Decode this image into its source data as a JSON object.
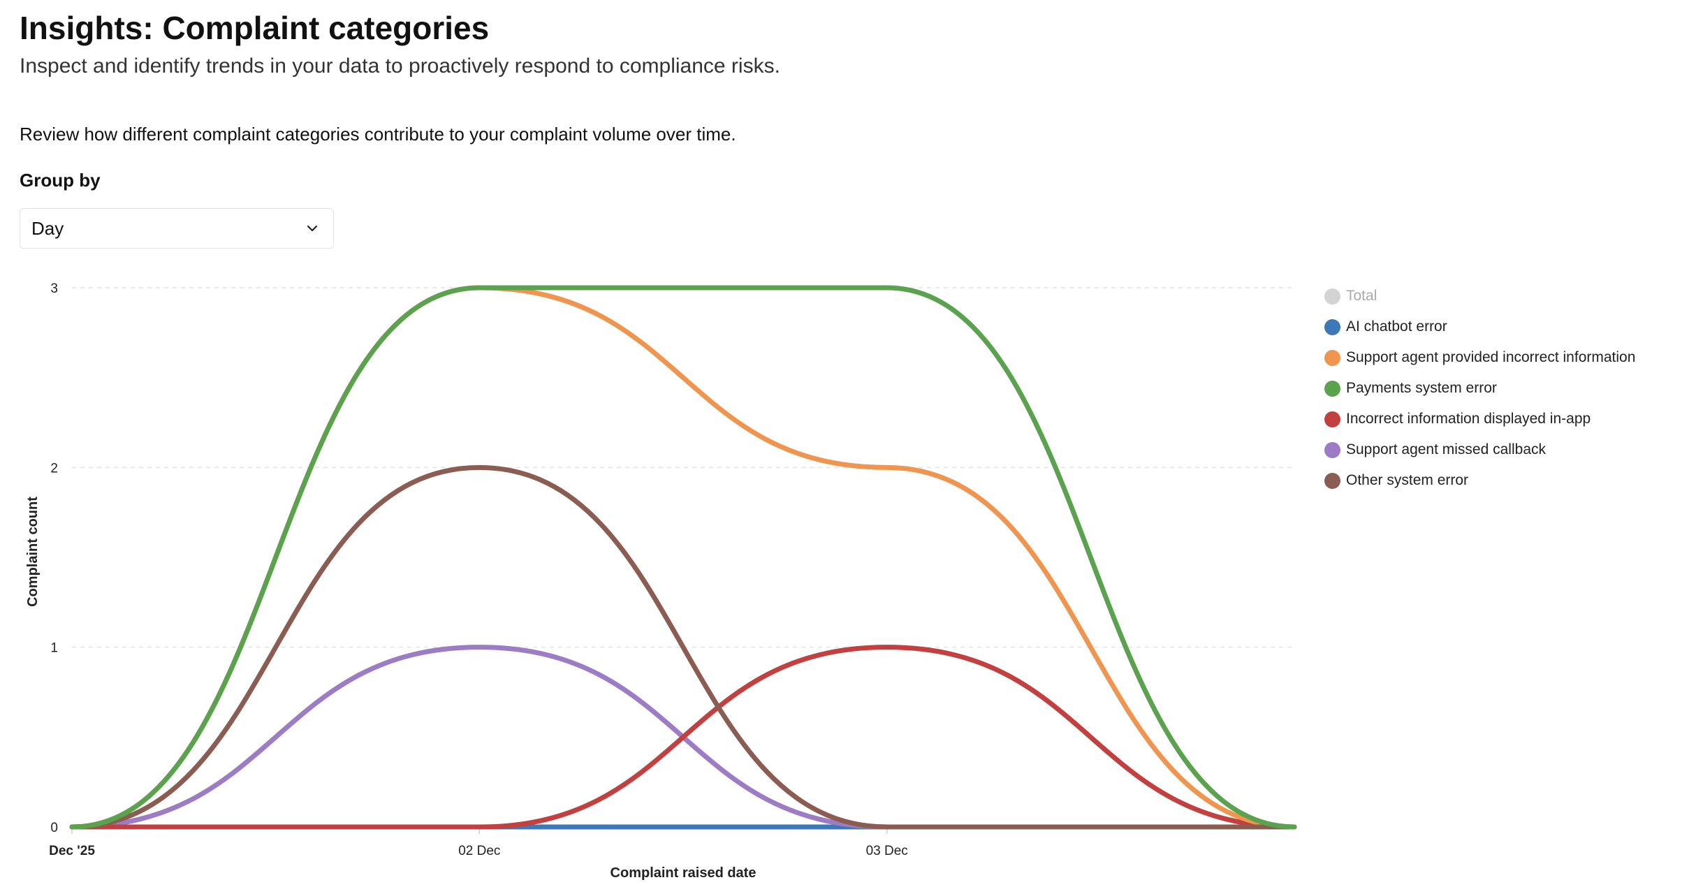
{
  "header": {
    "title": "Insights: Complaint categories",
    "subtitle": "Inspect and identify trends in your data to proactively respond to compliance risks."
  },
  "description": "Review how different complaint categories contribute to your complaint volume over time.",
  "group_by": {
    "label": "Group by",
    "selected": "Day",
    "chevron_icon": "chevron-down-icon"
  },
  "chart_data": {
    "type": "line",
    "xlabel": "Complaint raised date",
    "ylabel": "Complaint count",
    "x": [
      "Dec '25",
      "02 Dec",
      "03 Dec",
      ""
    ],
    "x_tick_labels": [
      "Dec '25",
      "02 Dec",
      "03 Dec"
    ],
    "ylim": [
      0,
      3
    ],
    "y_ticks": [
      "0",
      "1",
      "2",
      "3"
    ],
    "grid": "horizontal dashed",
    "legend_position": "right",
    "series": [
      {
        "name": "Total",
        "color": "#d3d3d3",
        "hidden": true,
        "values": null
      },
      {
        "name": "AI chatbot error",
        "color": "#3d79b8",
        "values": [
          0,
          0,
          0,
          0
        ]
      },
      {
        "name": "Support agent provided incorrect information",
        "color": "#f0954f",
        "values": [
          0,
          3,
          2,
          0
        ]
      },
      {
        "name": "Payments system error",
        "color": "#5ba24e",
        "values": [
          0,
          3,
          3,
          0
        ]
      },
      {
        "name": "Incorrect information displayed in-app",
        "color": "#c2403f",
        "values": [
          0,
          0,
          1,
          0
        ]
      },
      {
        "name": "Support agent missed callback",
        "color": "#9d7cc6",
        "values": [
          0,
          1,
          0,
          0
        ]
      },
      {
        "name": "Other system error",
        "color": "#8b5d52",
        "values": [
          0,
          2,
          0,
          0
        ]
      }
    ]
  }
}
